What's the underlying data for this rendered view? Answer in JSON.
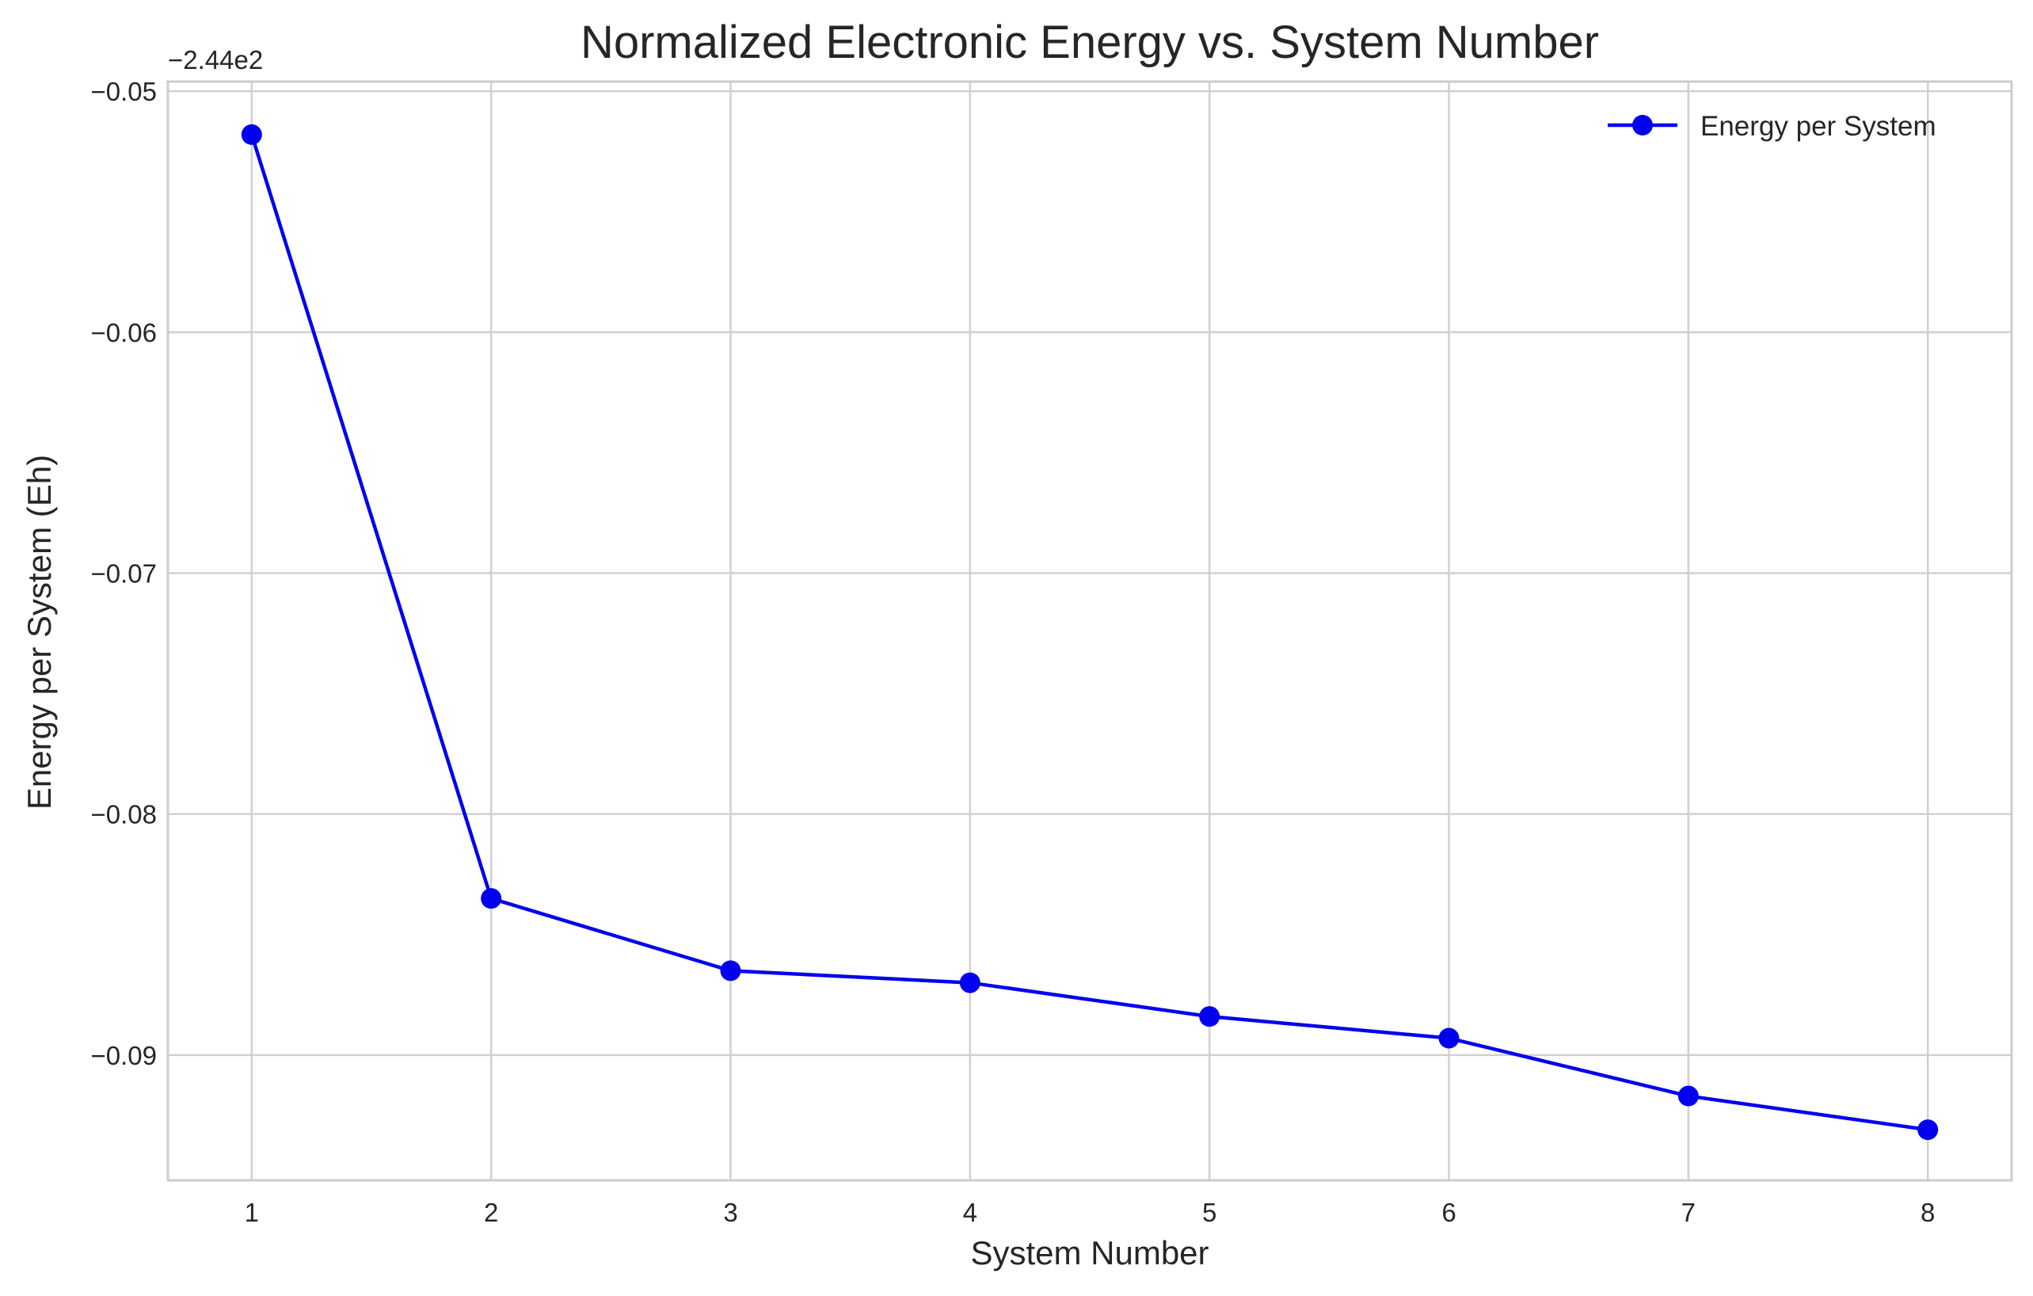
{
  "chart_data": {
    "type": "line",
    "title": "Normalized Electronic Energy vs. System Number",
    "xlabel": "System Number",
    "ylabel": "Energy per System (Eh)",
    "y_offset_text": "−2.44e2",
    "y_offset": -244,
    "xlim": [
      0.65,
      8.35
    ],
    "ylim": [
      -0.0952,
      -0.0496
    ],
    "x_ticks": [
      1,
      2,
      3,
      4,
      5,
      6,
      7,
      8
    ],
    "x_tick_labels": [
      "1",
      "2",
      "3",
      "4",
      "5",
      "6",
      "7",
      "8"
    ],
    "y_ticks": [
      -0.05,
      -0.06,
      -0.07,
      -0.08,
      -0.09
    ],
    "y_tick_labels": [
      "−0.05",
      "−0.06",
      "−0.07",
      "−0.08",
      "−0.09"
    ],
    "grid": true,
    "legend_position": "top-right",
    "series": [
      {
        "name": "Energy per System",
        "color": "#0000ee",
        "marker": "circle",
        "x": [
          1,
          2,
          3,
          4,
          5,
          6,
          7,
          8
        ],
        "values": [
          -0.0518,
          -0.0835,
          -0.0865,
          -0.087,
          -0.0884,
          -0.0893,
          -0.0917,
          -0.0931
        ]
      }
    ]
  }
}
